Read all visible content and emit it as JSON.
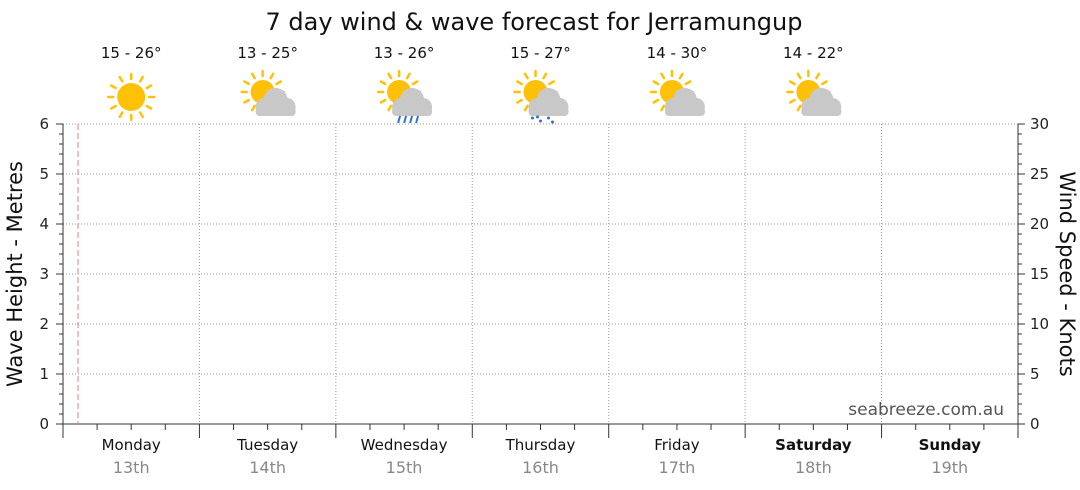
{
  "chart_data": {
    "type": "line",
    "title": "7 day wind & wave forecast for Jerramungup",
    "ylabel_left": "Wave Height - Metres",
    "ylabel_right": "Wind Speed - Knots",
    "ylim_left": [
      0,
      6
    ],
    "ylim_right": [
      0,
      30
    ],
    "yticks_left": [
      "0",
      "1",
      "2",
      "3",
      "4",
      "5",
      "6"
    ],
    "yticks_right": [
      "0",
      "5",
      "10",
      "15",
      "20",
      "25",
      "30"
    ],
    "grid": true,
    "watermark": "seabreeze.com.au",
    "days": [
      {
        "name": "Monday",
        "date": "13th",
        "temp": "15 - 26°",
        "icon": "sunny-icon",
        "bold": false
      },
      {
        "name": "Tuesday",
        "date": "14th",
        "temp": "13 - 25°",
        "icon": "partly-cloudy-icon",
        "bold": false
      },
      {
        "name": "Wednesday",
        "date": "15th",
        "temp": "13 - 26°",
        "icon": "shower-icon",
        "bold": false
      },
      {
        "name": "Thursday",
        "date": "16th",
        "temp": "15 - 27°",
        "icon": "drizzle-icon",
        "bold": false
      },
      {
        "name": "Friday",
        "date": "17th",
        "temp": "14 - 30°",
        "icon": "partly-cloudy-icon",
        "bold": false
      },
      {
        "name": "Saturday",
        "date": "18th",
        "temp": "14 - 22°",
        "icon": "partly-cloudy-icon",
        "bold": true
      },
      {
        "name": "Sunday",
        "date": "19th",
        "temp": "",
        "icon": "",
        "bold": true
      }
    ],
    "series": []
  },
  "colors": {
    "sun": "#FFC107",
    "cloud": "#C8C8C8",
    "rain": "#2F6FD6",
    "now_marker": "#E08080"
  }
}
